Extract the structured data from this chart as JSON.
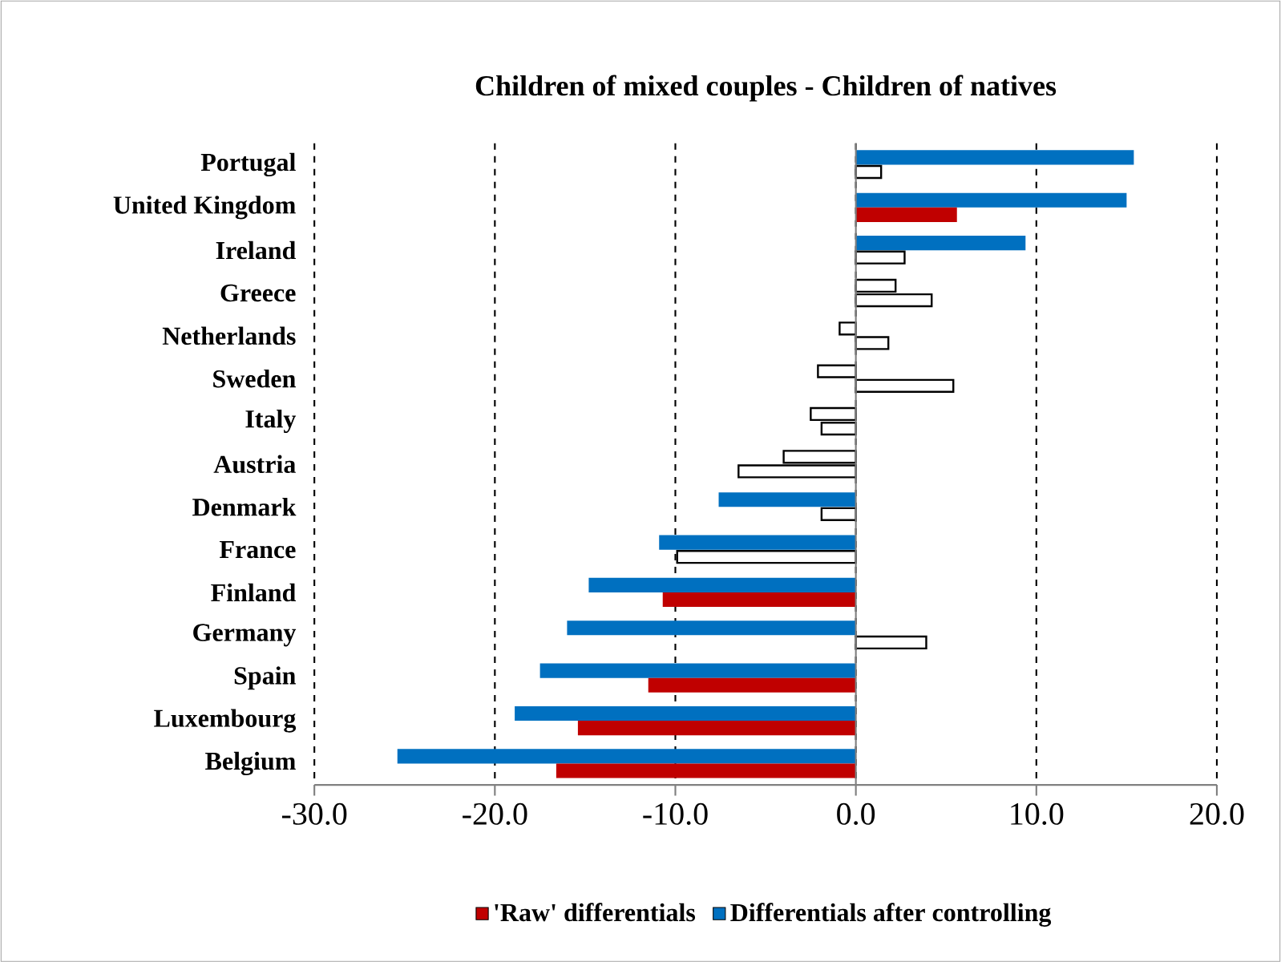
{
  "chart_data": {
    "type": "bar",
    "orientation": "horizontal",
    "title": "Children of mixed couples - Children of natives",
    "categories": [
      "Portugal",
      "United Kingdom",
      "Ireland",
      "Greece",
      "Netherlands",
      "Sweden",
      "Italy",
      "Austria",
      "Denmark",
      "France",
      "Finland",
      "Germany",
      "Spain",
      "Luxembourg",
      "Belgium"
    ],
    "series": [
      {
        "name": "Differentials after controlling",
        "color": "#0070c0",
        "values": [
          15.4,
          15.0,
          9.4,
          2.2,
          -0.9,
          -2.1,
          -2.5,
          -4.0,
          -7.6,
          -10.9,
          -14.8,
          -16.0,
          -17.5,
          -18.9,
          -25.4
        ],
        "colors": [
          "#0070c0",
          "#0070c0",
          "#0070c0",
          "#ffffff",
          "#ffffff",
          "#ffffff",
          "#ffffff",
          "#ffffff",
          "#0070c0",
          "#0070c0",
          "#0070c0",
          "#0070c0",
          "#0070c0",
          "#0070c0",
          "#0070c0"
        ]
      },
      {
        "name": "'Raw' differentials",
        "color": "#c00000",
        "values": [
          1.4,
          5.6,
          2.7,
          4.2,
          1.8,
          5.4,
          -1.9,
          -6.5,
          -1.9,
          -9.9,
          -10.7,
          3.9,
          -11.5,
          -15.4,
          -16.6
        ],
        "colors": [
          "#ffffff",
          "#c00000",
          "#ffffff",
          "#ffffff",
          "#ffffff",
          "#ffffff",
          "#ffffff",
          "#ffffff",
          "#ffffff",
          "#ffffff",
          "#c00000",
          "#ffffff",
          "#c00000",
          "#c00000",
          "#c00000"
        ]
      }
    ],
    "xlim": [
      -30,
      20
    ],
    "xticks": [
      {
        "value": -30,
        "label": "-30.0"
      },
      {
        "value": -20,
        "label": "-20.0"
      },
      {
        "value": -10,
        "label": "-10.0"
      },
      {
        "value": 0,
        "label": "0.0"
      },
      {
        "value": 10,
        "label": "10.0"
      },
      {
        "value": 20,
        "label": "20.0"
      }
    ],
    "grid": "x",
    "legend": "bottom"
  }
}
